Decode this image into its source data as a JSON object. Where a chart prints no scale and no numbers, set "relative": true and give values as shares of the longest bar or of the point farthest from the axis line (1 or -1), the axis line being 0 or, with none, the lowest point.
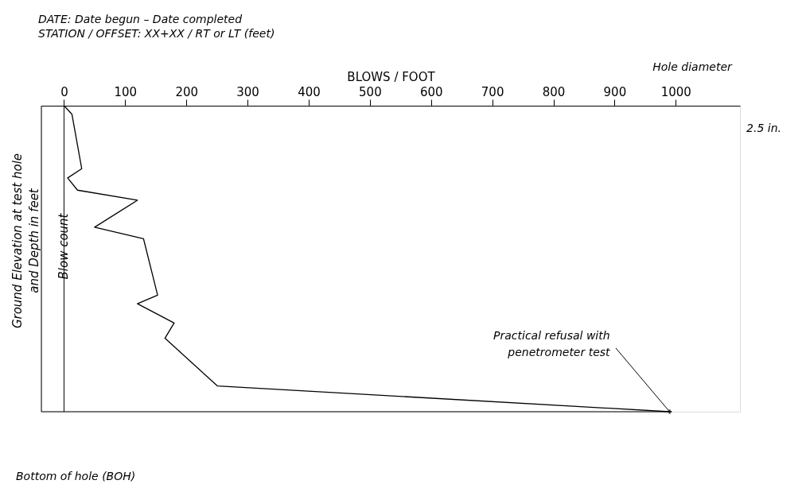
{
  "chart_data": {
    "type": "line",
    "title": "DATE:  Date begun – Date completed",
    "subtitle": "STATION / OFFSET:  XX+XX / RT or LT (feet)",
    "xlabel": "BLOWS / FOOT",
    "ylabel": "Ground Elevation at test hole\nand Depth in feet",
    "relative": true,
    "x": [
      0,
      13,
      29,
      6,
      22,
      120,
      50,
      130,
      153,
      120,
      180,
      165,
      251,
      990
    ],
    "series": [
      {
        "color": "#000000",
        "values": [
          0,
          -0.028,
          -0.206,
          -0.236,
          -0.276,
          -0.309,
          -0.397,
          -0.435,
          -0.619,
          -0.647,
          -0.71,
          -0.76,
          -0.916,
          -1
        ]
      }
    ],
    "xlim": [
      -37,
      1105
    ],
    "xticks": [
      0,
      100,
      200,
      300,
      400,
      500,
      600,
      700,
      800,
      900,
      1000
    ],
    "grid": false,
    "ref_lines": [
      {
        "axis": "x",
        "value": 0,
        "label": "Blow count",
        "color": "#000000"
      }
    ],
    "annotations": [
      {
        "text": "Practical refusal with\npenetrometer test",
        "x": 990,
        "y": -1
      },
      "Hole diameter",
      "2.5 in.",
      "Bottom of hole (BOH)"
    ]
  }
}
